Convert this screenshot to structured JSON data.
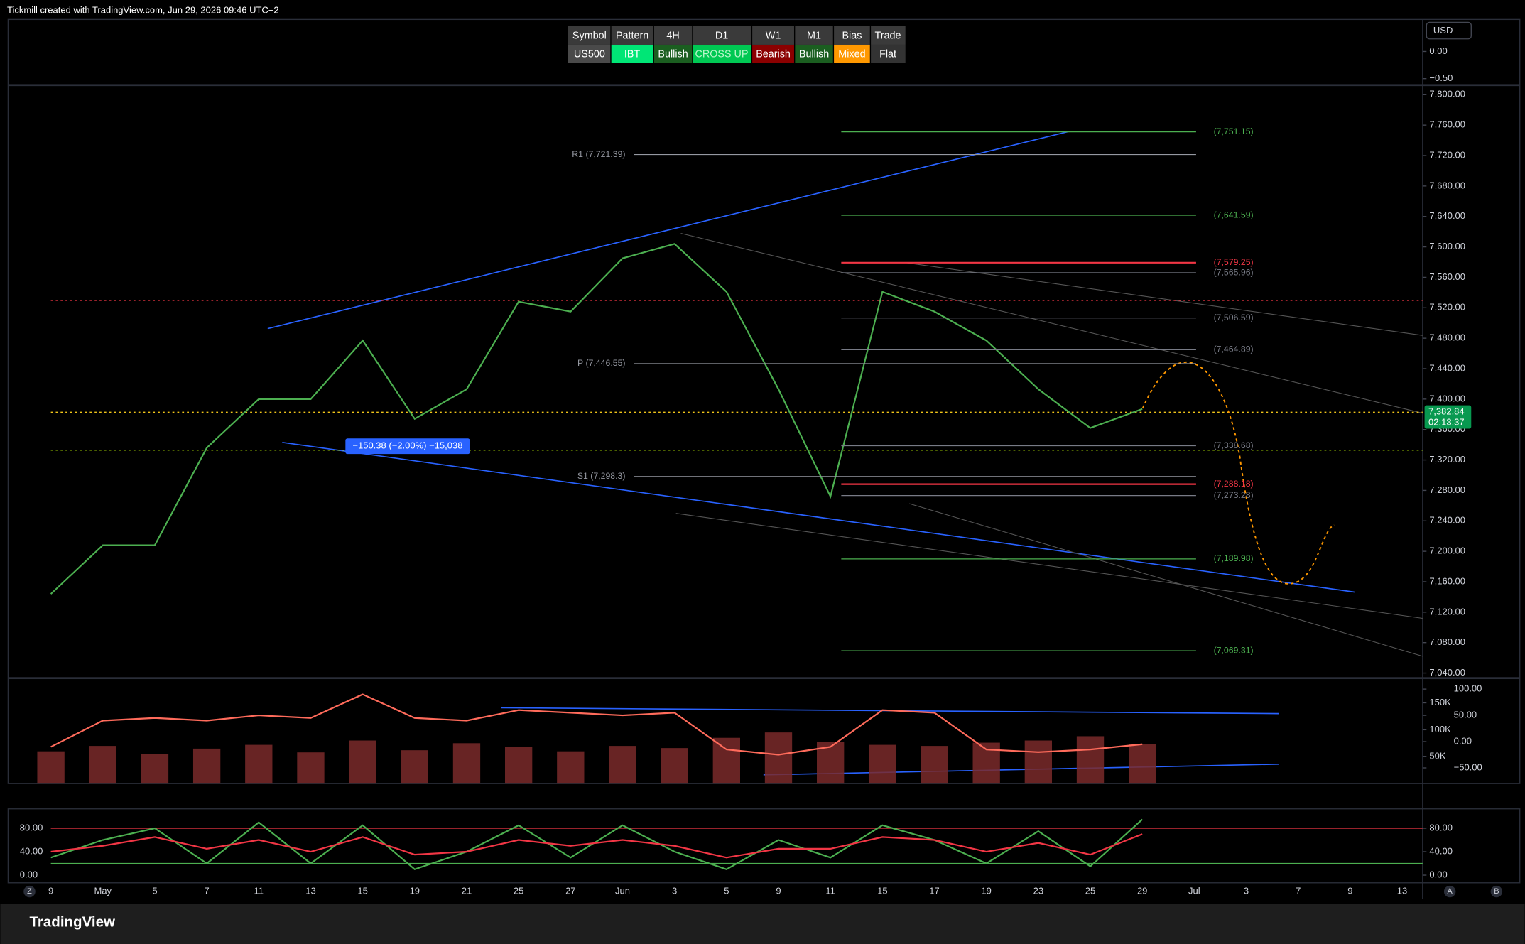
{
  "header": {
    "attribution": "Tickmill created with TradingView.com, Jun 29, 2026 09:46 UTC+2",
    "logo": "TradingView",
    "controls": [
      "Z",
      "A",
      "B"
    ]
  },
  "signal_table": {
    "header": [
      "Symbol",
      "Pattern",
      "4H",
      "D1",
      "W1",
      "M1",
      "Bias",
      "Trade"
    ],
    "row": [
      "US500",
      "IBT",
      "Bullish",
      "CROSS UP",
      "Bearish",
      "Bullish",
      "Mixed",
      "Flat"
    ]
  },
  "chart_data": [
    {
      "type": "line",
      "categories": [
        "9",
        "May",
        "5",
        "7",
        "11",
        "13",
        "15",
        "19",
        "21",
        "25",
        "27",
        "Jun",
        "3",
        "5",
        "9",
        "11",
        "15",
        "17",
        "19",
        "23",
        "25",
        "29",
        "Jul",
        "3",
        "7",
        "9",
        "13"
      ],
      "series": [
        {
          "name": "US500",
          "color": "#4caf50",
          "values": [
            7144,
            7208,
            7208,
            7336,
            7400,
            7400,
            7477,
            7374,
            7413,
            7528,
            7515,
            7585,
            7604,
            7541,
            7413,
            7272,
            7541,
            7515,
            7477,
            7413,
            7362,
            7387,
            null,
            null,
            null,
            null,
            null
          ]
        }
      ],
      "ylim": [
        7034,
        7812
      ],
      "yticks": [
        {
          "value": 7040,
          "label": "7,040.00"
        },
        {
          "value": 7080,
          "label": "7,080.00"
        },
        {
          "value": 7120,
          "label": "7,120.00"
        },
        {
          "value": 7160,
          "label": "7,160.00"
        },
        {
          "value": 7200,
          "label": "7,200.00"
        },
        {
          "value": 7240,
          "label": "7,240.00"
        },
        {
          "value": 7280,
          "label": "7,280.00"
        },
        {
          "value": 7320,
          "label": "7,320.00"
        },
        {
          "value": 7360,
          "label": "7,360.00"
        },
        {
          "value": 7400,
          "label": "7,400.00"
        },
        {
          "value": 7440,
          "label": "7,440.00"
        },
        {
          "value": 7480,
          "label": "7,480.00"
        },
        {
          "value": 7520,
          "label": "7,520.00"
        },
        {
          "value": 7560,
          "label": "7,560.00"
        },
        {
          "value": 7600,
          "label": "7,600.00"
        },
        {
          "value": 7640,
          "label": "7,640.00"
        },
        {
          "value": 7680,
          "label": "7,680.00"
        },
        {
          "value": 7720,
          "label": "7,720.00"
        },
        {
          "value": 7760,
          "label": "7,760.00"
        },
        {
          "value": 7800,
          "label": "7,800.00"
        }
      ],
      "levels": [
        {
          "value": 7751.15,
          "label": "(7,751.15)",
          "color": "#4caf50"
        },
        {
          "value": 7641.59,
          "label": "(7,641.59)",
          "color": "#4caf50"
        },
        {
          "value": 7579.25,
          "label": "(7,579.25)",
          "color": "#f23645"
        },
        {
          "value": 7565.96,
          "label": "(7,565.96)",
          "color": "#787b86"
        },
        {
          "value": 7506.59,
          "label": "(7,506.59)",
          "color": "#787b86"
        },
        {
          "value": 7464.89,
          "label": "(7,464.89)",
          "color": "#787b86"
        },
        {
          "value": 7338.68,
          "label": "(7,338.68)",
          "color": "#787b86"
        },
        {
          "value": 7288.18,
          "label": "(7,288.18)",
          "color": "#f23645"
        },
        {
          "value": 7273.28,
          "label": "(7,273.28)",
          "color": "#787b86"
        },
        {
          "value": 7189.98,
          "label": "(7,189.98)",
          "color": "#4caf50"
        },
        {
          "value": 7069.31,
          "label": "(7,069.31)",
          "color": "#4caf50"
        }
      ],
      "pivots": [
        {
          "value": 7721.39,
          "label": "R1 (7,721.39)"
        },
        {
          "value": 7446.55,
          "label": "P (7,446.55)"
        },
        {
          "value": 7298.3,
          "label": "S1 (7,298.3)"
        }
      ],
      "last_price": {
        "value": 7382.84,
        "label": "7,382.84"
      },
      "countdown": "02:13:37",
      "measure_label": "−150.38 (−2.00%) −15,038"
    },
    {
      "type": "bar",
      "series": [
        {
          "name": "Volume",
          "color": "#7a2a2a",
          "values": [
            60000,
            70000,
            55000,
            65000,
            72000,
            58000,
            80000,
            62000,
            75000,
            68000,
            60000,
            70000,
            66000,
            85000,
            95000,
            78000,
            72000,
            70000,
            76000,
            80000,
            88000,
            74000,
            null,
            null,
            null,
            null,
            null
          ]
        },
        {
          "name": "Volume Oscillator",
          "type": "line",
          "axis": "y2",
          "color": "#ff6b5b",
          "values": [
            -10,
            40,
            45,
            40,
            50,
            45,
            90,
            45,
            40,
            60,
            55,
            50,
            55,
            -15,
            -25,
            -10,
            60,
            55,
            -15,
            -20,
            -15,
            -5,
            null,
            null,
            null,
            null,
            null
          ]
        }
      ],
      "ylim": [
        0,
        195000
      ],
      "yticks": [
        {
          "value": 50000,
          "label": "50K"
        },
        {
          "value": 100000,
          "label": "100K"
        },
        {
          "value": 150000,
          "label": "150K"
        }
      ],
      "y2lim": [
        -80,
        120
      ],
      "y2ticks": [
        {
          "value": -50,
          "label": "−50.00"
        },
        {
          "value": 0,
          "label": "0.00"
        },
        {
          "value": 50,
          "label": "50.00"
        },
        {
          "value": 100,
          "label": "100.00"
        }
      ]
    },
    {
      "type": "line",
      "series": [
        {
          "name": "%K",
          "color": "#4caf50",
          "values": [
            30,
            60,
            80,
            20,
            90,
            20,
            85,
            10,
            40,
            85,
            30,
            85,
            40,
            10,
            60,
            30,
            85,
            60,
            20,
            75,
            15,
            95,
            null,
            null,
            null,
            null,
            null
          ]
        },
        {
          "name": "%D",
          "color": "#f23645",
          "values": [
            40,
            50,
            65,
            45,
            60,
            40,
            65,
            35,
            40,
            60,
            50,
            60,
            50,
            30,
            45,
            45,
            65,
            60,
            40,
            55,
            35,
            70,
            null,
            null,
            null,
            null,
            null
          ]
        }
      ],
      "ylim": [
        -13,
        113
      ],
      "yticks": [
        {
          "value": 0,
          "label": "0.00"
        },
        {
          "value": 40,
          "label": "40.00"
        },
        {
          "value": 80,
          "label": "80.00"
        }
      ]
    },
    {
      "type": "line",
      "currency": "USD",
      "ylim": [
        -0.61,
        0.59
      ],
      "yticks": [
        {
          "value": 0,
          "label": "0.00"
        },
        {
          "value": -0.5,
          "label": "−0.50"
        }
      ]
    }
  ]
}
